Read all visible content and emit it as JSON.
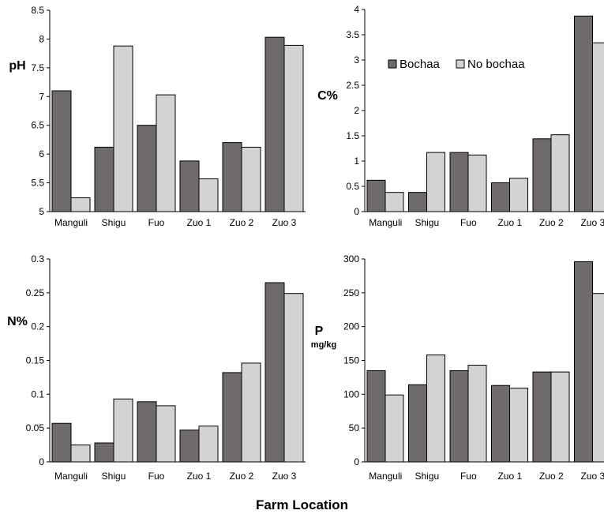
{
  "figure": {
    "shared_xlabel": "Farm Location"
  },
  "colors": {
    "bochaa": "#6f6a6b",
    "no_bochaa": "#d3d3d3",
    "bar_stroke": "#000000",
    "axis": "#000000"
  },
  "chart_data": [
    {
      "type": "bar",
      "ylabel": "pH",
      "ylabel_unit": "",
      "ylim": [
        5,
        8.5
      ],
      "yticks": [
        "5",
        "5.5",
        "6",
        "6.5",
        "7",
        "7.5",
        "8",
        "8.5"
      ],
      "categories": [
        "Manguli",
        "Shigu",
        "Fuo",
        "Zuo 1",
        "Zuo 2",
        "Zuo 3"
      ],
      "series": [
        {
          "name": "Bochaa",
          "values": [
            7.1,
            6.12,
            6.5,
            5.88,
            6.2,
            8.03
          ]
        },
        {
          "name": "No bochaa",
          "values": [
            5.24,
            7.88,
            7.03,
            5.57,
            6.12,
            7.89
          ]
        }
      ],
      "grid": false,
      "legend": false
    },
    {
      "type": "bar",
      "ylabel": "C%",
      "ylabel_unit": "",
      "ylim": [
        0,
        4
      ],
      "yticks": [
        "0",
        "0.5",
        "1",
        "1.5",
        "2",
        "2.5",
        "3",
        "3.5",
        "4"
      ],
      "categories": [
        "Manguli",
        "Shigu",
        "Fuo",
        "Zuo 1",
        "Zuo 2",
        "Zuo 3"
      ],
      "series": [
        {
          "name": "Bochaa",
          "values": [
            0.62,
            0.38,
            1.17,
            0.57,
            1.44,
            3.87
          ]
        },
        {
          "name": "No bochaa",
          "values": [
            0.38,
            1.17,
            1.12,
            0.66,
            1.52,
            3.34
          ]
        }
      ],
      "grid": false,
      "legend": true,
      "legend_position": "top-left"
    },
    {
      "type": "bar",
      "ylabel": "N%",
      "ylabel_unit": "",
      "ylim": [
        0,
        0.3
      ],
      "yticks": [
        "0",
        "0.05",
        "0.1",
        "0.15",
        "0.2",
        "0.25",
        "0.3"
      ],
      "categories": [
        "Manguli",
        "Shigu",
        "Fuo",
        "Zuo 1",
        "Zuo 2",
        "Zuo 3"
      ],
      "series": [
        {
          "name": "Bochaa",
          "values": [
            0.057,
            0.028,
            0.089,
            0.047,
            0.132,
            0.265
          ]
        },
        {
          "name": "No bochaa",
          "values": [
            0.025,
            0.093,
            0.083,
            0.053,
            0.146,
            0.249
          ]
        }
      ],
      "grid": false,
      "legend": false
    },
    {
      "type": "bar",
      "ylabel": "P",
      "ylabel_unit": "mg/kg",
      "ylim": [
        0,
        300
      ],
      "yticks": [
        "0",
        "50",
        "100",
        "150",
        "200",
        "250",
        "300"
      ],
      "categories": [
        "Manguli",
        "Shigu",
        "Fuo",
        "Zuo 1",
        "Zuo 2",
        "Zuo 3"
      ],
      "series": [
        {
          "name": "Bochaa",
          "values": [
            135,
            114,
            135,
            113,
            133,
            296
          ]
        },
        {
          "name": "No bochaa",
          "values": [
            99,
            158,
            143,
            109,
            133,
            249
          ]
        }
      ],
      "grid": false,
      "legend": false
    }
  ]
}
